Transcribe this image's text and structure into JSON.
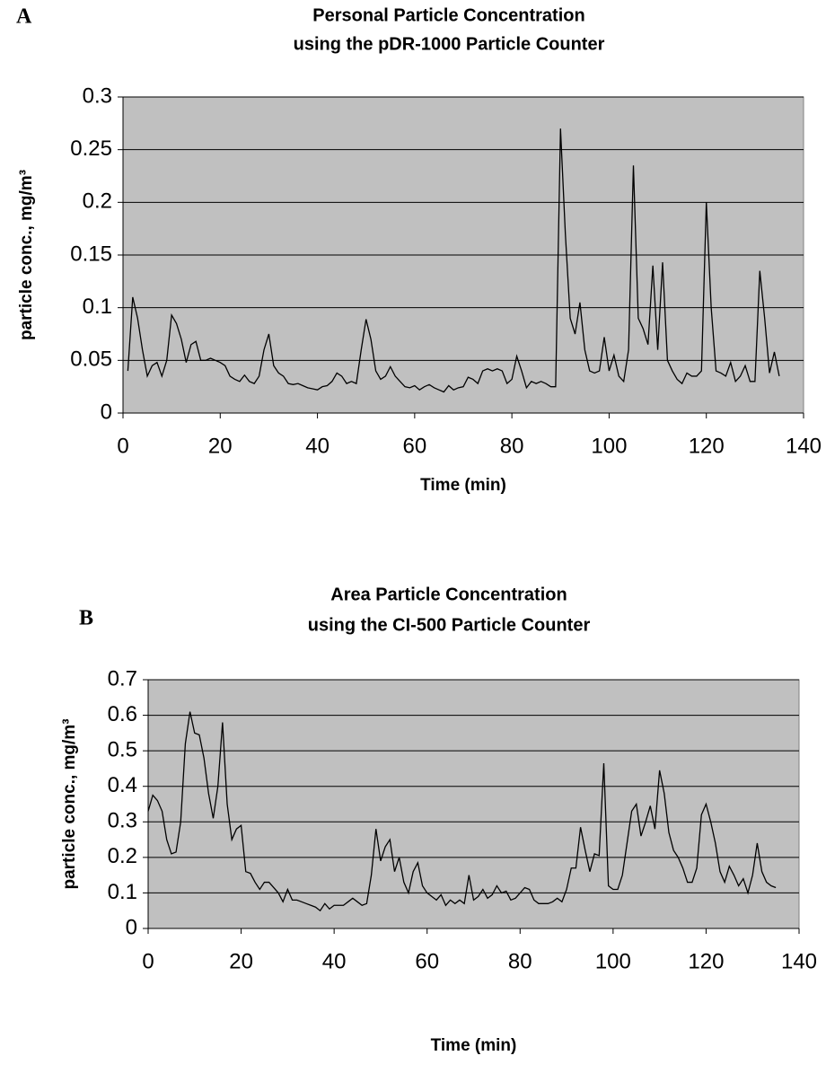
{
  "chart_data": [
    {
      "type": "line",
      "panel_label": "A",
      "title": "Personal Particle Concentration",
      "subtitle": "using the pDR-1000 Particle Counter",
      "xlabel": "Time (min)",
      "ylabel": "particle conc., mg/m³",
      "x": [
        1,
        2,
        3,
        4,
        5,
        6,
        7,
        8,
        9,
        10,
        11,
        12,
        13,
        14,
        15,
        16,
        17,
        18,
        19,
        20,
        21,
        22,
        23,
        24,
        25,
        26,
        27,
        28,
        29,
        30,
        31,
        32,
        33,
        34,
        35,
        36,
        37,
        38,
        39,
        40,
        41,
        42,
        43,
        44,
        45,
        46,
        47,
        48,
        49,
        50,
        51,
        52,
        53,
        54,
        55,
        56,
        57,
        58,
        59,
        60,
        61,
        62,
        63,
        64,
        65,
        66,
        67,
        68,
        69,
        70,
        71,
        72,
        73,
        74,
        75,
        76,
        77,
        78,
        79,
        80,
        81,
        82,
        83,
        84,
        85,
        86,
        87,
        88,
        89,
        90,
        91,
        92,
        93,
        94,
        95,
        96,
        97,
        98,
        99,
        100,
        101,
        102,
        103,
        104,
        105,
        106,
        107,
        108,
        109,
        110,
        111,
        112,
        113,
        114,
        115,
        116,
        117,
        118,
        119,
        120,
        121,
        122,
        123,
        124,
        125,
        126,
        127,
        128,
        129,
        130,
        131,
        132,
        133,
        134,
        135
      ],
      "values": [
        0.04,
        0.11,
        0.09,
        0.06,
        0.035,
        0.045,
        0.048,
        0.035,
        0.05,
        0.093,
        0.085,
        0.07,
        0.048,
        0.065,
        0.068,
        0.05,
        0.05,
        0.052,
        0.05,
        0.048,
        0.045,
        0.035,
        0.032,
        0.03,
        0.036,
        0.03,
        0.028,
        0.035,
        0.06,
        0.075,
        0.045,
        0.038,
        0.035,
        0.028,
        0.027,
        0.028,
        0.026,
        0.024,
        0.023,
        0.022,
        0.025,
        0.026,
        0.03,
        0.038,
        0.035,
        0.028,
        0.03,
        0.028,
        0.06,
        0.089,
        0.07,
        0.04,
        0.032,
        0.035,
        0.044,
        0.035,
        0.03,
        0.025,
        0.024,
        0.026,
        0.022,
        0.025,
        0.027,
        0.024,
        0.022,
        0.02,
        0.026,
        0.022,
        0.024,
        0.025,
        0.034,
        0.032,
        0.028,
        0.04,
        0.042,
        0.04,
        0.042,
        0.04,
        0.028,
        0.032,
        0.054,
        0.04,
        0.024,
        0.03,
        0.028,
        0.03,
        0.028,
        0.025,
        0.025,
        0.27,
        0.17,
        0.09,
        0.075,
        0.105,
        0.06,
        0.04,
        0.038,
        0.04,
        0.072,
        0.04,
        0.055,
        0.035,
        0.03,
        0.06,
        0.235,
        0.09,
        0.08,
        0.065,
        0.14,
        0.06,
        0.143,
        0.05,
        0.04,
        0.032,
        0.028,
        0.038,
        0.035,
        0.035,
        0.04,
        0.2,
        0.1,
        0.04,
        0.038,
        0.035,
        0.048,
        0.03,
        0.035,
        0.045,
        0.03,
        0.03,
        0.135,
        0.09,
        0.038,
        0.058,
        0.035
      ],
      "color": "#000000",
      "plot_color": "#c0c0c0",
      "xlim": [
        0,
        140
      ],
      "xticks": [
        0,
        20,
        40,
        60,
        80,
        100,
        120,
        140
      ],
      "ylim": [
        0,
        0.3
      ],
      "yticks": [
        0,
        0.05,
        0.1,
        0.15,
        0.2,
        0.25,
        0.3
      ],
      "grid": true
    },
    {
      "type": "line",
      "panel_label": "B",
      "title": "Area Particle Concentration",
      "subtitle": "using the CI-500 Particle Counter",
      "xlabel": "Time (min)",
      "ylabel": "particle conc., mg/m³",
      "x": [
        0,
        1,
        2,
        3,
        4,
        5,
        6,
        7,
        8,
        9,
        10,
        11,
        12,
        13,
        14,
        15,
        16,
        17,
        18,
        19,
        20,
        21,
        22,
        23,
        24,
        25,
        26,
        27,
        28,
        29,
        30,
        31,
        32,
        33,
        34,
        35,
        36,
        37,
        38,
        39,
        40,
        41,
        42,
        43,
        44,
        45,
        46,
        47,
        48,
        49,
        50,
        51,
        52,
        53,
        54,
        55,
        56,
        57,
        58,
        59,
        60,
        61,
        62,
        63,
        64,
        65,
        66,
        67,
        68,
        69,
        70,
        71,
        72,
        73,
        74,
        75,
        76,
        77,
        78,
        79,
        80,
        81,
        82,
        83,
        84,
        85,
        86,
        87,
        88,
        89,
        90,
        91,
        92,
        93,
        94,
        95,
        96,
        97,
        98,
        99,
        100,
        101,
        102,
        103,
        104,
        105,
        106,
        107,
        108,
        109,
        110,
        111,
        112,
        113,
        114,
        115,
        116,
        117,
        118,
        119,
        120,
        121,
        122,
        123,
        124,
        125,
        126,
        127,
        128,
        129,
        130,
        131,
        132,
        133,
        134,
        135
      ],
      "values": [
        0.33,
        0.375,
        0.36,
        0.33,
        0.25,
        0.21,
        0.215,
        0.3,
        0.52,
        0.61,
        0.55,
        0.545,
        0.48,
        0.38,
        0.31,
        0.4,
        0.58,
        0.35,
        0.25,
        0.28,
        0.29,
        0.16,
        0.155,
        0.13,
        0.11,
        0.13,
        0.13,
        0.115,
        0.1,
        0.075,
        0.11,
        0.08,
        0.08,
        0.075,
        0.07,
        0.065,
        0.06,
        0.05,
        0.07,
        0.055,
        0.065,
        0.065,
        0.065,
        0.075,
        0.085,
        0.075,
        0.065,
        0.07,
        0.15,
        0.28,
        0.19,
        0.23,
        0.25,
        0.16,
        0.2,
        0.13,
        0.1,
        0.16,
        0.185,
        0.12,
        0.1,
        0.09,
        0.08,
        0.095,
        0.065,
        0.08,
        0.07,
        0.08,
        0.07,
        0.15,
        0.08,
        0.09,
        0.11,
        0.085,
        0.095,
        0.12,
        0.1,
        0.105,
        0.08,
        0.085,
        0.1,
        0.115,
        0.11,
        0.08,
        0.07,
        0.07,
        0.07,
        0.075,
        0.085,
        0.075,
        0.11,
        0.17,
        0.17,
        0.285,
        0.22,
        0.16,
        0.21,
        0.205,
        0.465,
        0.12,
        0.11,
        0.11,
        0.15,
        0.24,
        0.33,
        0.35,
        0.26,
        0.3,
        0.345,
        0.28,
        0.445,
        0.38,
        0.27,
        0.22,
        0.2,
        0.17,
        0.13,
        0.13,
        0.17,
        0.32,
        0.35,
        0.3,
        0.24,
        0.16,
        0.13,
        0.175,
        0.15,
        0.12,
        0.14,
        0.1,
        0.15,
        0.24,
        0.16,
        0.13,
        0.12,
        0.115
      ],
      "color": "#000000",
      "plot_color": "#c0c0c0",
      "xlim": [
        0,
        140
      ],
      "xticks": [
        0,
        20,
        40,
        60,
        80,
        100,
        120,
        140
      ],
      "ylim": [
        0,
        0.7
      ],
      "yticks": [
        0,
        0.1,
        0.2,
        0.3,
        0.4,
        0.5,
        0.6,
        0.7
      ],
      "grid": true
    }
  ]
}
